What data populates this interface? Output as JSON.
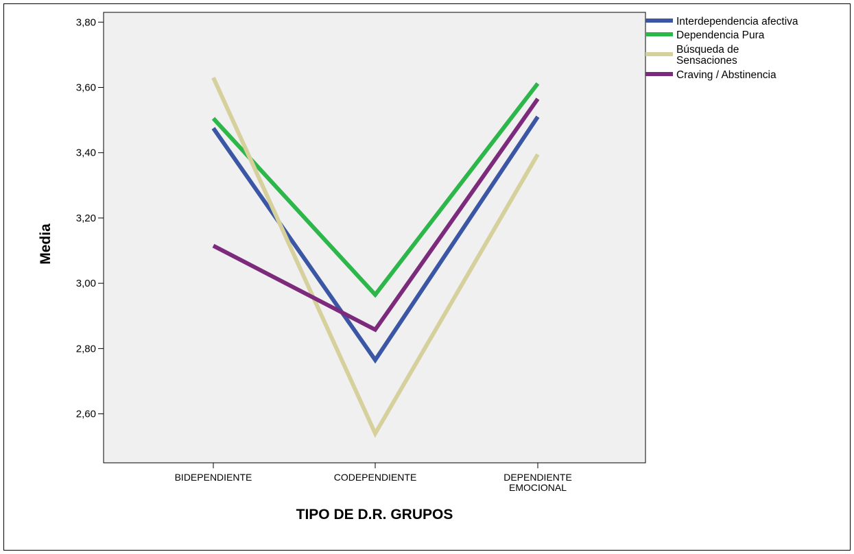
{
  "chart_data": {
    "type": "line",
    "categories": [
      [
        "BIDEPENDIENTE"
      ],
      [
        "CODEPENDIENTE"
      ],
      [
        "DEPENDIENTE",
        "EMOCIONAL"
      ]
    ],
    "series": [
      {
        "name": "Interdependencia afectiva",
        "color": "#3b56a4",
        "values": [
          3.475,
          2.765,
          3.51
        ]
      },
      {
        "name": "Dependencia Pura",
        "color": "#2db64a",
        "values": [
          3.505,
          2.965,
          3.612
        ]
      },
      {
        "name": "Búsqueda de Sensaciones",
        "name_lines": [
          "Búsqueda de",
          "Sensaciones"
        ],
        "color": "#d6d09c",
        "values": [
          3.63,
          2.54,
          3.395
        ]
      },
      {
        "name": "Craving / Abstinencia",
        "color": "#7c2a7b",
        "values": [
          3.115,
          2.858,
          3.565
        ]
      }
    ],
    "yticks": [
      "2,60",
      "2,80",
      "3,00",
      "3,20",
      "3,40",
      "3,60",
      "3,80"
    ],
    "ylim": [
      2.45,
      3.83
    ],
    "xlabel": "TIPO DE D.R. GRUPOS",
    "ylabel": "Media",
    "legend_position": "top-right",
    "plot_background": "#f0f0f0",
    "grid": false
  }
}
